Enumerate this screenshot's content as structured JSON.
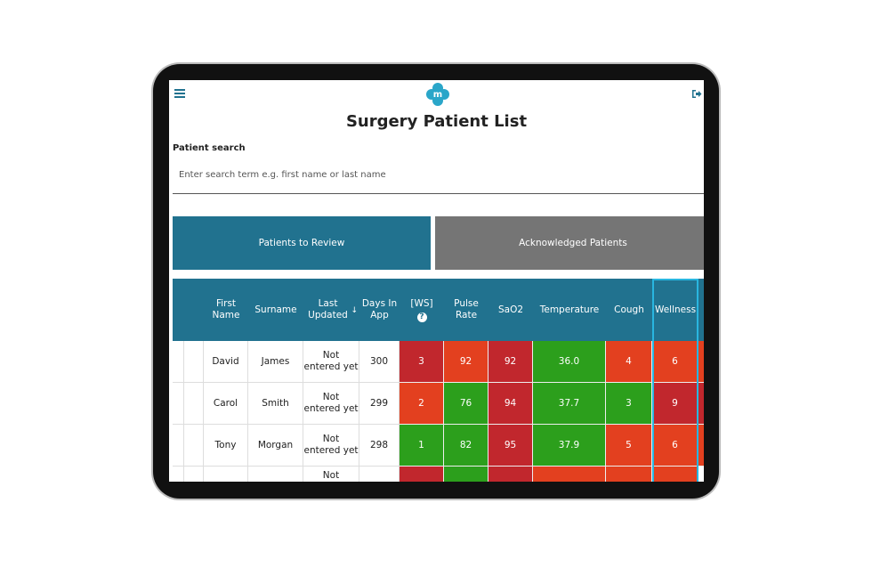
{
  "header": {
    "logo": "m",
    "title": "Surgery Patient List"
  },
  "search": {
    "label": "Patient search",
    "placeholder": "Enter search term e.g. first name or last name"
  },
  "tabs": [
    "Patients to Review",
    "Acknowledged Patients"
  ],
  "table": {
    "columns": [
      "First Name",
      "Surname",
      "Last Updated",
      "Days In App",
      "[WS]",
      "Pulse Rate",
      "SaO2",
      "Temperature",
      "Cough",
      "Wellness"
    ],
    "rows": [
      [
        "David",
        "James",
        "Not entered yet",
        300,
        3,
        92,
        92,
        "36.0",
        4,
        6
      ],
      [
        "Carol",
        "Smith",
        "Not entered yet",
        299,
        2,
        76,
        94,
        "37.7",
        3,
        9
      ],
      [
        "Tony",
        "Morgan",
        "Not entered yet",
        298,
        1,
        82,
        95,
        "37.9",
        5,
        6
      ]
    ],
    "partial_row": {
      "last_updated": "Not"
    },
    "cell_colors": [
      [
        "#c1272d",
        "#e3401f",
        "#c1272d",
        "#2c9f1c",
        "#e3401f",
        "#e3401f"
      ],
      [
        "#e3401f",
        "#2c9f1c",
        "#c1272d",
        "#2c9f1c",
        "#2c9f1c",
        "#c1272d"
      ],
      [
        "#2c9f1c",
        "#2c9f1c",
        "#c1272d",
        "#2c9f1c",
        "#e3401f",
        "#e3401f"
      ],
      [
        "#c1272d",
        "#2c9f1c",
        "#c1272d",
        "#e3401f",
        "#e3401f",
        "#e3401f"
      ]
    ],
    "highlight_column": 5
  }
}
